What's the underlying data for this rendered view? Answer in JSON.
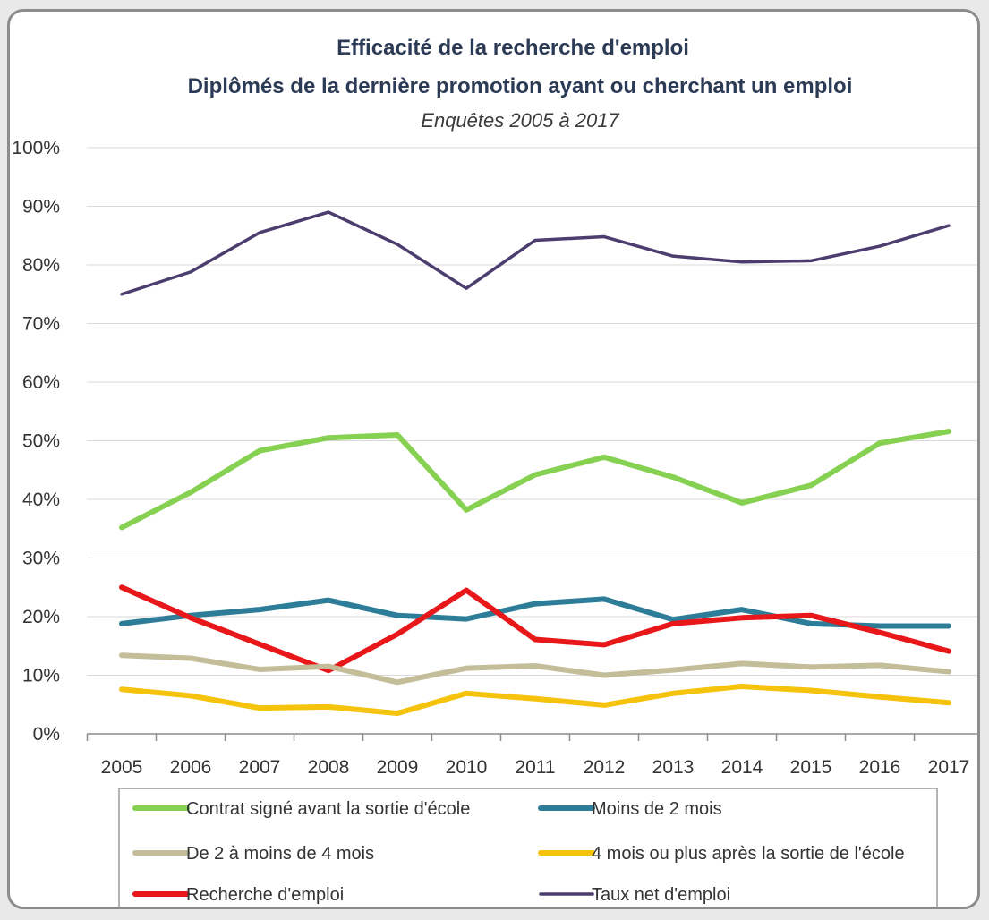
{
  "chart_data": {
    "type": "line",
    "title": "Efficacité de la recherche d'emploi",
    "subtitle_line": "Diplômés de la dernière promotion ayant ou cherchant un emploi",
    "subtitle": "Enquêtes 2005 à 2017",
    "xlabel": "",
    "ylabel": "",
    "ylim": [
      0,
      100
    ],
    "y_ticks": [
      "0%",
      "10%",
      "20%",
      "30%",
      "40%",
      "50%",
      "60%",
      "70%",
      "80%",
      "90%",
      "100%"
    ],
    "grid": true,
    "legend_position": "bottom",
    "x": [
      "2005",
      "2006",
      "2007",
      "2008",
      "2009",
      "2010",
      "2011",
      "2012",
      "2013",
      "2014",
      "2015",
      "2016",
      "2017"
    ],
    "series": [
      {
        "name": "Taux net d'emploi",
        "color": "#4b3d6e",
        "values": [
          75,
          78.8,
          85.5,
          89,
          83.5,
          76,
          84.2,
          84.8,
          81.5,
          80.5,
          80.7,
          83.2,
          86.7
        ]
      },
      {
        "name": "Contrat signé avant la sortie d'école",
        "color": "#86d151",
        "values": [
          35.2,
          41.2,
          48.3,
          50.5,
          51,
          38.2,
          44.2,
          47.2,
          43.8,
          39.4,
          42.4,
          49.6,
          51.6
        ]
      },
      {
        "name": "Moins de 2 mois",
        "color": "#2e7d98",
        "values": [
          18.8,
          20.2,
          21.2,
          22.8,
          20.2,
          19.6,
          22.2,
          23,
          19.5,
          21.2,
          18.8,
          18.4,
          18.4
        ]
      },
      {
        "name": "Recherche d'emploi",
        "color": "#e8171a",
        "values": [
          25,
          19.8,
          15.3,
          10.8,
          17,
          24.5,
          16.1,
          15.2,
          18.8,
          19.8,
          20.2,
          17.3,
          14.1
        ]
      },
      {
        "name": "De 2 à moins de 4 mois",
        "color": "#c4bd9a",
        "values": [
          13.4,
          12.9,
          11,
          11.5,
          8.8,
          11.2,
          11.6,
          10,
          10.9,
          12,
          11.4,
          11.7,
          10.6
        ]
      },
      {
        "name": "4 mois ou plus après la sortie de l'école",
        "color": "#f5c20c",
        "values": [
          7.6,
          6.5,
          4.4,
          4.6,
          3.5,
          6.9,
          6,
          4.9,
          6.9,
          8.1,
          7.4,
          6.3,
          5.3
        ]
      }
    ],
    "legend_order": [
      1,
      2,
      4,
      5,
      3,
      0
    ]
  }
}
